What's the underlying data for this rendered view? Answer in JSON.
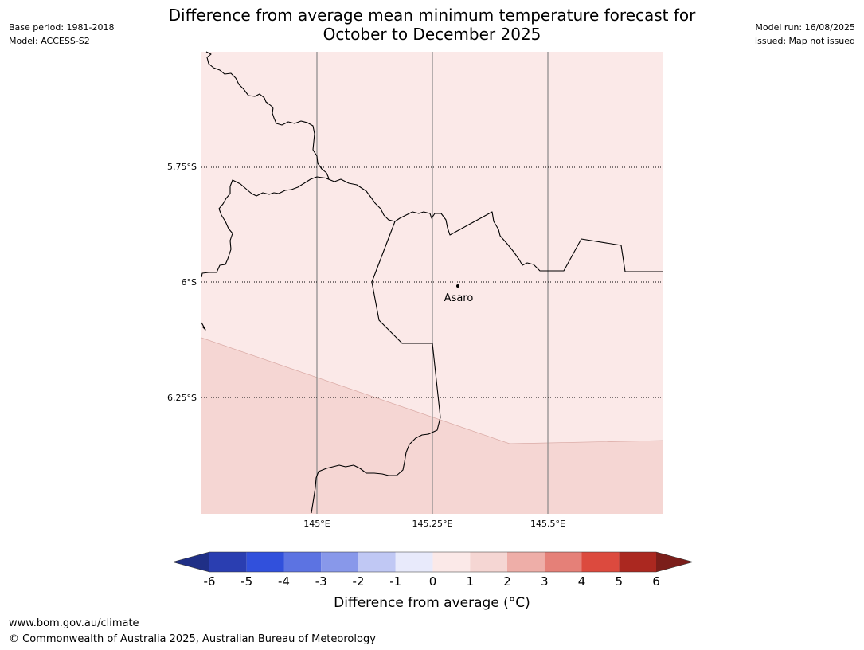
{
  "header": {
    "title_line1": "Difference from average mean minimum temperature forecast for",
    "title_line2": "October to December 2025",
    "base_period": "Base period: 1981-2018",
    "model": "Model: ACCESS-S2",
    "model_run": "Model run: 16/08/2025",
    "issued": "Issued: Map not issued"
  },
  "map": {
    "lat_labels": [
      "5.75°S",
      "6°S",
      "6.25°S"
    ],
    "lon_labels": [
      "145°E",
      "145.25°E",
      "145.5°E"
    ],
    "place": "Asaro",
    "region_colors": {
      "zero_to_one": "#fbe9e8",
      "one_to_two": "#f5d6d3"
    }
  },
  "colorbar": {
    "ticks": [
      "-6",
      "-5",
      "-4",
      "-3",
      "-2",
      "-1",
      "0",
      "1",
      "2",
      "3",
      "4",
      "5",
      "6"
    ],
    "colors": [
      "#1f2f86",
      "#2a3eb1",
      "#3150dc",
      "#5c73e2",
      "#8898ea",
      "#c0c8f4",
      "#e8eafb",
      "#fbe9e8",
      "#f5d6d3",
      "#eeaea8",
      "#e58078",
      "#dc4a3e",
      "#ab2820",
      "#7b1e1a"
    ],
    "label": "Difference from average (°C)"
  },
  "footer": {
    "url": "www.bom.gov.au/climate",
    "copyright": "© Commonwealth of Australia 2025, Australian Bureau of Meteorology"
  }
}
